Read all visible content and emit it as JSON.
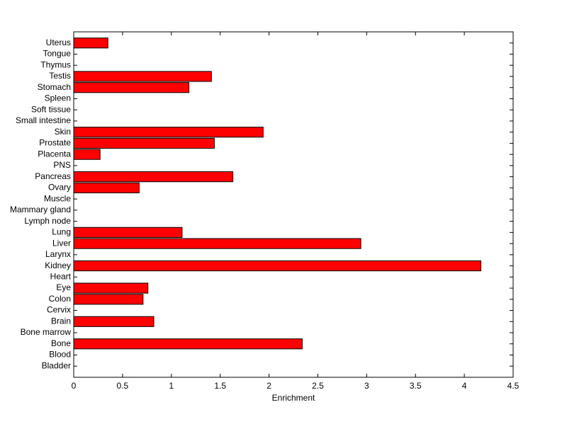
{
  "chart_data": {
    "type": "barh",
    "xlabel": "Enrichment",
    "categories": [
      "Bladder",
      "Blood",
      "Bone",
      "Bone marrow",
      "Brain",
      "Cervix",
      "Colon",
      "Eye",
      "Heart",
      "Kidney",
      "Larynx",
      "Liver",
      "Lung",
      "Lymph node",
      "Mammary gland",
      "Muscle",
      "Ovary",
      "Pancreas",
      "PNS",
      "Placenta",
      "Prostate",
      "Skin",
      "Small intestine",
      "Soft tissue",
      "Spleen",
      "Stomach",
      "Testis",
      "Thymus",
      "Tongue",
      "Uterus"
    ],
    "values": [
      0,
      0,
      2.34,
      0,
      0.82,
      0,
      0.71,
      0.76,
      0,
      4.17,
      0,
      2.94,
      1.11,
      0,
      0,
      0,
      0.67,
      1.63,
      0,
      0.27,
      1.44,
      1.94,
      0,
      0,
      0,
      1.18,
      1.41,
      0,
      0,
      0.35
    ],
    "color": "#ff0000",
    "xlim": [
      0,
      4.5
    ],
    "xticks": [
      0,
      0.5,
      1,
      1.5,
      2,
      2.5,
      3,
      3.5,
      4,
      4.5
    ]
  }
}
